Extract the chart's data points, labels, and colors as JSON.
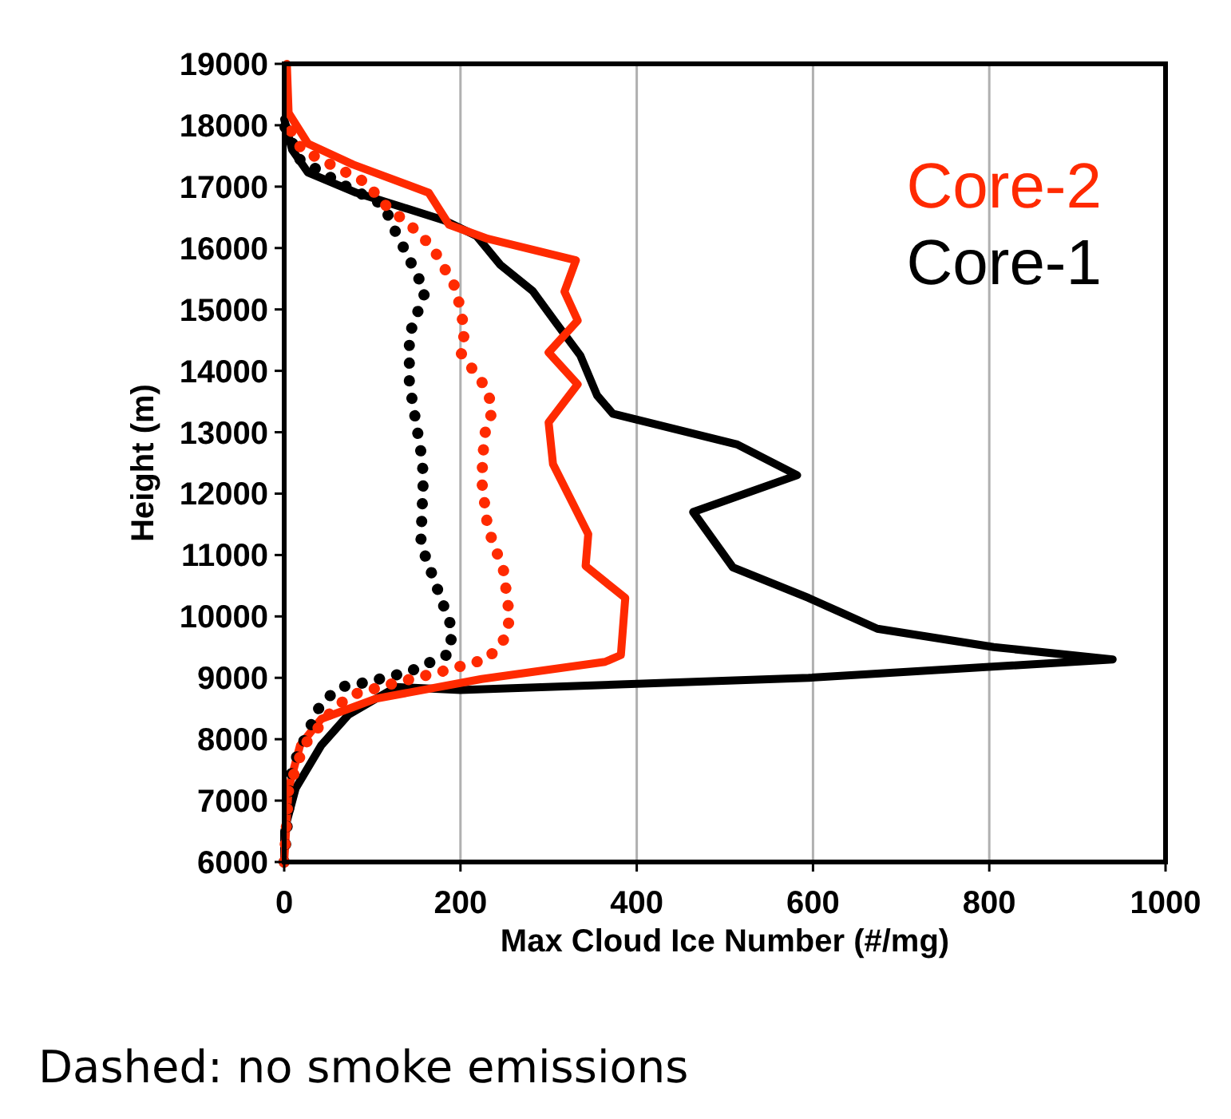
{
  "chart_data": {
    "type": "line",
    "xlabel": "Max Cloud Ice Number (#/mg)",
    "ylabel": "Height (m)",
    "xlim": [
      0,
      1000
    ],
    "xticks": [
      0,
      200,
      400,
      600,
      800,
      1000
    ],
    "ylim": [
      6000,
      19000
    ],
    "yticks": [
      6000,
      7000,
      8000,
      9000,
      10000,
      11000,
      12000,
      13000,
      14000,
      15000,
      16000,
      17000,
      18000,
      19000
    ],
    "grid": "x",
    "legend": "top right",
    "annotations": [
      "Dashed: no smoke emissions"
    ],
    "series": [
      {
        "name": "Core-1",
        "color": "#000000",
        "line_style": "solid",
        "x": [
          0,
          0,
          13,
          42,
          73,
          127,
          200,
          595,
          940,
          805,
          673,
          595,
          509,
          464,
          582,
          514,
          373,
          355,
          336,
          309,
          282,
          245,
          218,
          182,
          82,
          27,
          9,
          0
        ],
        "values": [
          6000,
          6500,
          7200,
          7900,
          8400,
          8850,
          8800,
          9000,
          9300,
          9500,
          9800,
          10300,
          10800,
          11700,
          12300,
          12800,
          13300,
          13600,
          14250,
          14770,
          15300,
          15730,
          16200,
          16450,
          16900,
          17230,
          17600,
          18100
        ]
      },
      {
        "name": "Core-2",
        "color": "#ff2a00",
        "line_style": "solid",
        "x": [
          0,
          5,
          18,
          42,
          104,
          224,
          364,
          382,
          387,
          342,
          345,
          305,
          300,
          333,
          300,
          333,
          318,
          331,
          231,
          187,
          164,
          78,
          27,
          5,
          3
        ],
        "values": [
          6000,
          7200,
          7900,
          8330,
          8660,
          8980,
          9260,
          9370,
          10300,
          10820,
          11340,
          12480,
          13160,
          13780,
          14300,
          14820,
          15290,
          15800,
          16150,
          16380,
          16900,
          17360,
          17700,
          18200,
          19000
        ]
      },
      {
        "color": "#000000",
        "line_style": "dotted",
        "x": [
          0,
          9,
          31,
          42,
          64,
          91,
          142,
          187,
          191,
          173,
          155,
          158,
          155,
          142,
          142,
          160,
          136,
          124,
          113,
          67,
          18,
          0
        ],
        "values": [
          6000,
          7550,
          8250,
          8590,
          8850,
          8920,
          9100,
          9390,
          9780,
          10480,
          11180,
          12300,
          12690,
          13800,
          14590,
          15290,
          15990,
          16330,
          16700,
          17030,
          17440,
          18000
        ]
      },
      {
        "color": "#ff2a00",
        "line_style": "dotted",
        "x": [
          0,
          5,
          22,
          55,
          76,
          127,
          178,
          231,
          249,
          256,
          249,
          231,
          224,
          227,
          236,
          231,
          200,
          205,
          195,
          169,
          151,
          109,
          95,
          20,
          0
        ],
        "values": [
          6000,
          7180,
          7890,
          8480,
          8720,
          8920,
          9100,
          9310,
          9620,
          9960,
          10740,
          11440,
          12220,
          12950,
          13340,
          13680,
          14300,
          14640,
          15340,
          15990,
          16270,
          16770,
          17050,
          17600,
          18100
        ]
      }
    ]
  }
}
